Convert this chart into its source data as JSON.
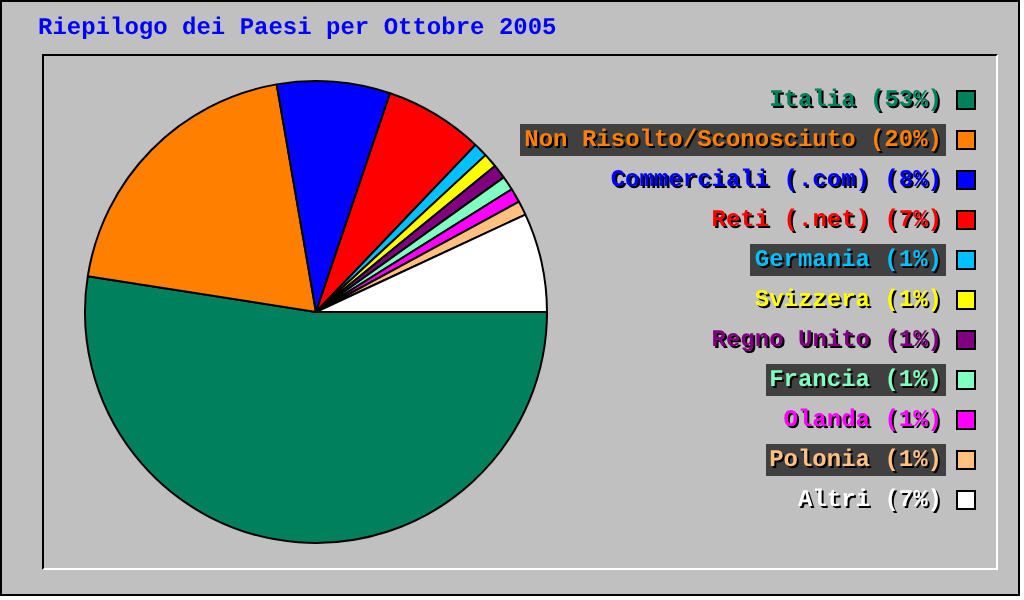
{
  "chart_data": {
    "type": "pie",
    "title": "Riepilogo dei Paesi per Ottobre 2005",
    "categories": [
      "Italia (53%)",
      "Non Risolto/Sconosciuto (20%)",
      "Commerciali (.com) (8%)",
      "Reti (.net) (7%)",
      "Germania (1%)",
      "Svizzera (1%)",
      "Regno Unito (1%)",
      "Francia (1%)",
      "Olanda (1%)",
      "Polonia (1%)",
      "Altri (7%)"
    ],
    "values": [
      53,
      20,
      8,
      7,
      1,
      1,
      1,
      1,
      1,
      1,
      7
    ],
    "colors": [
      "#00805c",
      "#ff8000",
      "#0000ff",
      "#ff0000",
      "#00c0ff",
      "#ffff00",
      "#800080",
      "#80ffc0",
      "#ff00ff",
      "#ffc080",
      "#ffffff"
    ],
    "legend": "right"
  }
}
